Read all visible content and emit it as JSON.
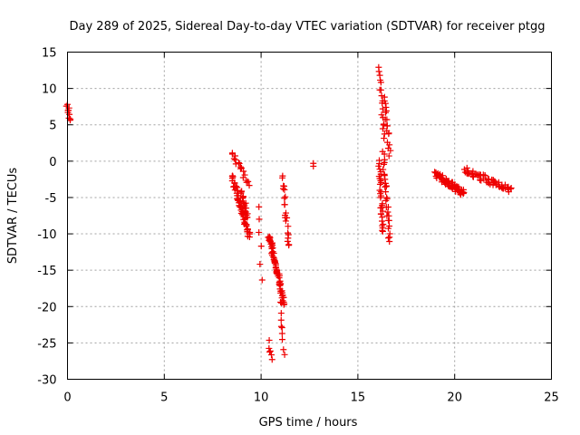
{
  "chart_data": {
    "type": "scatter",
    "title": "Day 289 of 2025, Sidereal Day-to-day VTEC variation (SDTVAR) for receiver ptgg",
    "xlabel": "GPS time / hours",
    "ylabel": "SDTVAR / TECUs",
    "xlim": [
      0,
      25
    ],
    "ylim": [
      -30,
      15
    ],
    "xticks": [
      "0",
      "5",
      "10",
      "15",
      "20",
      "25"
    ],
    "yticks": [
      "15",
      "10",
      "5",
      "0",
      "-5",
      "-10",
      "-15",
      "-20",
      "-25",
      "-30"
    ],
    "grid": true,
    "marker": "+",
    "color": "#ee0000",
    "series": [
      {
        "name": "clusters",
        "clusters": [
          {
            "x": [
              0.0,
              0.1
            ],
            "y": [
              8.0,
              5.8
            ],
            "n": 10
          },
          {
            "x": [
              8.5,
              9.35
            ],
            "y": [
              1.0,
              -3.0
            ],
            "n": 18
          },
          {
            "x": [
              8.5,
              9.4
            ],
            "y": [
              -2.0,
              -10.5
            ],
            "n": 60
          },
          {
            "x": [
              9.0,
              9.3
            ],
            "y": [
              -4.0,
              -8.0
            ],
            "n": 20
          },
          {
            "x": [
              9.9,
              10.0
            ],
            "y": [
              -6.0,
              -16.0
            ],
            "n": 6
          },
          {
            "x": [
              10.4,
              10.6
            ],
            "y": [
              -25.0,
              -27.5
            ],
            "n": 6
          },
          {
            "x": [
              10.4,
              11.2
            ],
            "y": [
              -10.0,
              -19.5
            ],
            "n": 70
          },
          {
            "x": [
              11.0,
              11.2
            ],
            "y": [
              -19.0,
              -26.5
            ],
            "n": 10
          },
          {
            "x": [
              11.1,
              11.45
            ],
            "y": [
              -2.0,
              -12.0
            ],
            "n": 22
          },
          {
            "x": [
              16.1,
              16.35
            ],
            "y": [
              13.0,
              3.0
            ],
            "n": 18
          },
          {
            "x": [
              16.35,
              16.65
            ],
            "y": [
              9.0,
              1.0
            ],
            "n": 18
          },
          {
            "x": [
              16.1,
              16.3
            ],
            "y": [
              0.0,
              -10.0
            ],
            "n": 30
          },
          {
            "x": [
              16.3,
              16.65
            ],
            "y": [
              1.0,
              -11.0
            ],
            "n": 30
          },
          {
            "x": [
              19.0,
              20.5
            ],
            "y": [
              -1.8,
              -4.5
            ],
            "n": 70
          },
          {
            "x": [
              20.5,
              22.9
            ],
            "y": [
              -1.2,
              -4.0
            ],
            "n": 60
          }
        ],
        "points": [
          {
            "x": 12.7,
            "y": -0.3
          },
          {
            "x": 12.7,
            "y": -0.7
          }
        ]
      }
    ]
  }
}
